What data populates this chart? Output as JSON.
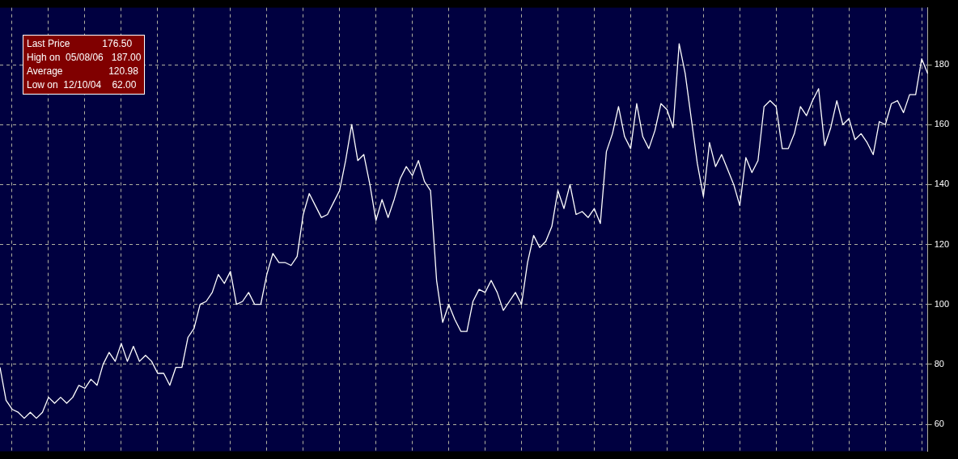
{
  "chart_data": {
    "type": "line",
    "categories": [
      null,
      null,
      null,
      null,
      null,
      null,
      null,
      null,
      null,
      null,
      null,
      null,
      null,
      null,
      null,
      null,
      null,
      null,
      null,
      null,
      null,
      null,
      null,
      null,
      null,
      null,
      null,
      null,
      null,
      null,
      null,
      null,
      null,
      null,
      null,
      null,
      null,
      null,
      null,
      null,
      null,
      null,
      null,
      null,
      null,
      null,
      null,
      null,
      null,
      null,
      null,
      null,
      null,
      null,
      null,
      null,
      null,
      null,
      null,
      null,
      null,
      null,
      null,
      null,
      null,
      null,
      null,
      null,
      null,
      null,
      null,
      null,
      null,
      null,
      null,
      null,
      null,
      null,
      null,
      null,
      null,
      null,
      null,
      null,
      null,
      null,
      null,
      null,
      null,
      null,
      null,
      null,
      null,
      null,
      null,
      null,
      null,
      null,
      null,
      null,
      null,
      null,
      null,
      null,
      null,
      null,
      null,
      null,
      null,
      null,
      null,
      null,
      null,
      null,
      null,
      null,
      null,
      null,
      null,
      null,
      null,
      null,
      null,
      null,
      null,
      null,
      null,
      null,
      null,
      null,
      null,
      null,
      null,
      null,
      null,
      null,
      null,
      null,
      null,
      null,
      null,
      null,
      null,
      null,
      null,
      null,
      null,
      null,
      null,
      null,
      null,
      null,
      null,
      null
    ],
    "series": [
      {
        "color": "#ffffff",
        "values": [
          79,
          68,
          65,
          64,
          62,
          64,
          62,
          64,
          69,
          67,
          69,
          67,
          69,
          73,
          72,
          75,
          73,
          80,
          84,
          81,
          87,
          81,
          86,
          81,
          83,
          81,
          77,
          77,
          73,
          79,
          79,
          89,
          92,
          100,
          101,
          104,
          110,
          107,
          111,
          100,
          101,
          104,
          100,
          100,
          110,
          117,
          114,
          114,
          113,
          116,
          130,
          137,
          133,
          129,
          130,
          134,
          138,
          148,
          160,
          148,
          150,
          140,
          128,
          135,
          129,
          135,
          142,
          146,
          143,
          148,
          141,
          138,
          108,
          94,
          100,
          95,
          91,
          91,
          101,
          105,
          104,
          108,
          104,
          98,
          101,
          104,
          100,
          114,
          123,
          119,
          121,
          126,
          138,
          132,
          140,
          130,
          131,
          129,
          132,
          127,
          151,
          157,
          166,
          156,
          152,
          167,
          156,
          152,
          158,
          167,
          165,
          159,
          187,
          177,
          162,
          147,
          136,
          154,
          146,
          150,
          145,
          140,
          133,
          149,
          144,
          148,
          166,
          168,
          166,
          152,
          152,
          157,
          166,
          163,
          168,
          172,
          153,
          159,
          168,
          160,
          162,
          155,
          157,
          154,
          150,
          161,
          160,
          167,
          168,
          164,
          170,
          170,
          182,
          177
        ]
      }
    ],
    "ylim": [
      51,
      199
    ],
    "yticks": [
      60,
      80,
      100,
      120,
      140,
      160,
      180
    ],
    "grid": true,
    "legend": false,
    "marker": "none",
    "line_style": "solid",
    "annotations": [
      "Last Price            176.50",
      "High on  05/08/06   187.00",
      "Average                 120.98",
      "Low on  12/10/04    62.00"
    ]
  }
}
